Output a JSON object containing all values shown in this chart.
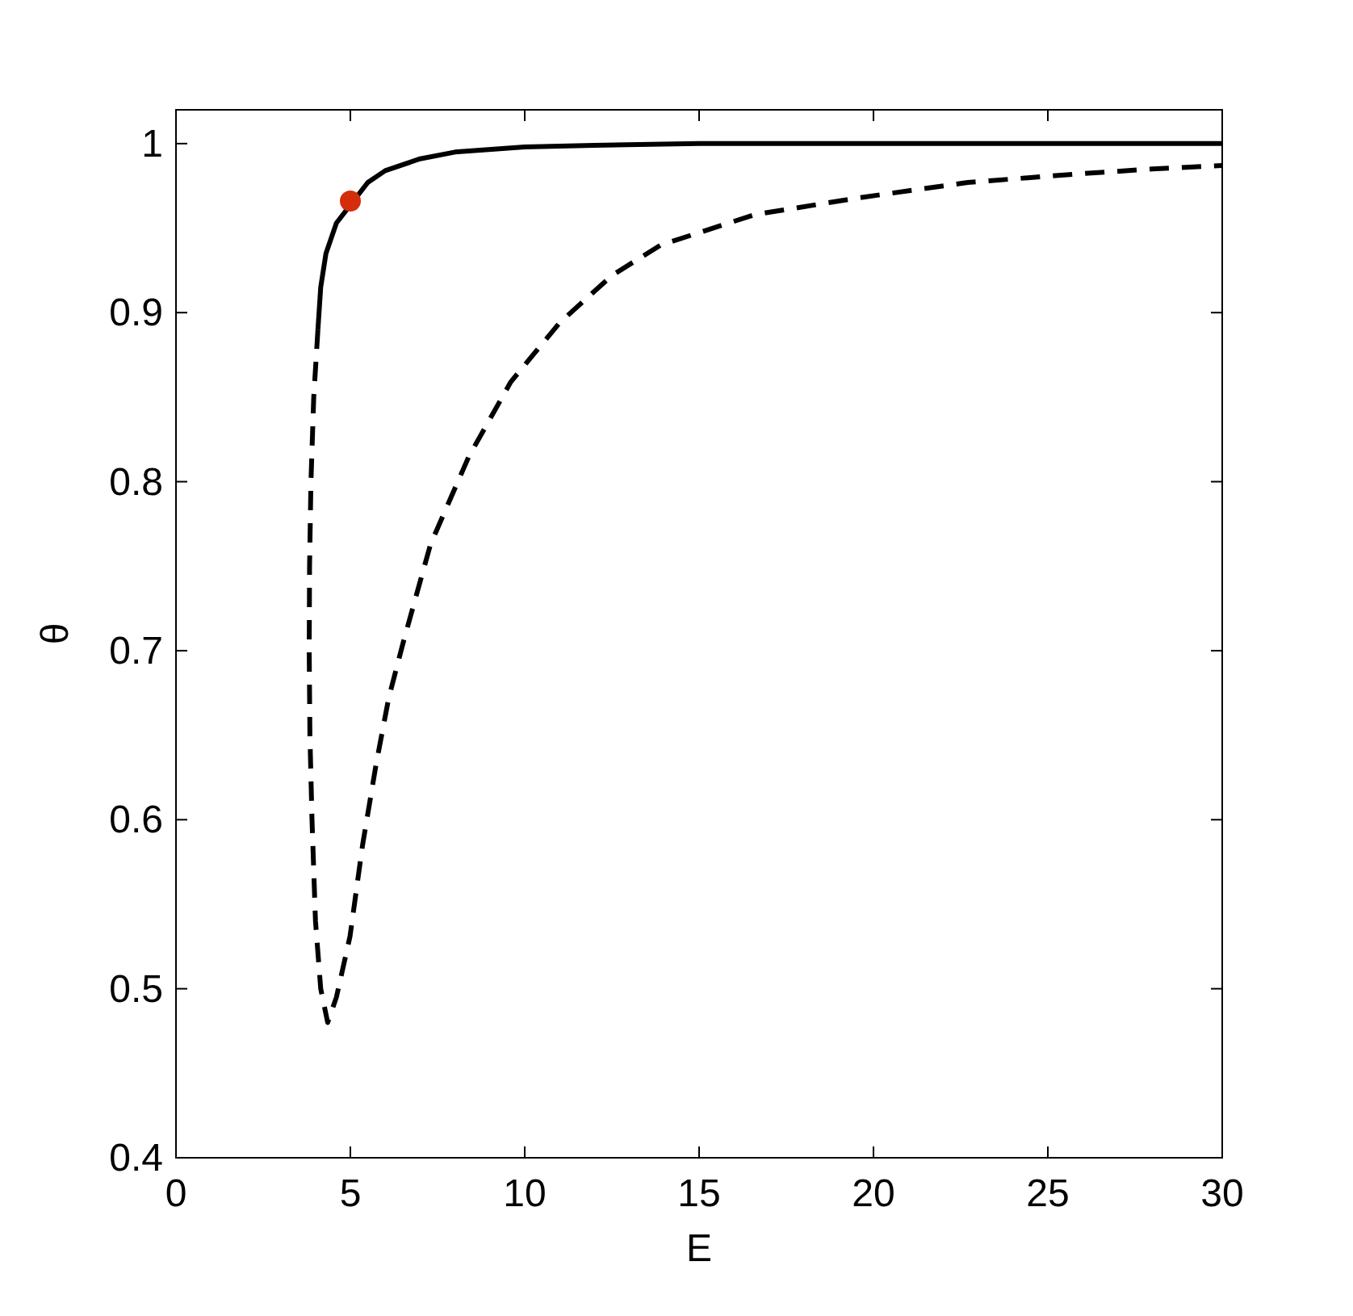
{
  "chart_data": {
    "type": "line",
    "xlabel": "E",
    "ylabel": "θ",
    "xlim": [
      0,
      30
    ],
    "ylim": [
      0.4,
      1.02
    ],
    "xticks": [
      0,
      5,
      10,
      15,
      20,
      25,
      30
    ],
    "yticks": [
      {
        "value": 0.4,
        "label": "0.4"
      },
      {
        "value": 0.5,
        "label": "0.5"
      },
      {
        "value": 0.6,
        "label": "0.6"
      },
      {
        "value": 0.7,
        "label": "0.7"
      },
      {
        "value": 0.8,
        "label": "0.8"
      },
      {
        "value": 0.9,
        "label": "0.9"
      },
      {
        "value": 1,
        "label": "1"
      }
    ],
    "grid": false,
    "marker": "none",
    "series": [
      {
        "color": "#000000",
        "line_style": "solid",
        "x": [
          4.07,
          4.15,
          4.3,
          4.6,
          5.5,
          6,
          7,
          8,
          10,
          12,
          15,
          20,
          25,
          30
        ],
        "values": [
          0.89,
          0.915,
          0.935,
          0.953,
          0.977,
          0.984,
          0.991,
          0.995,
          0.998,
          0.999,
          1,
          1,
          1,
          1
        ]
      },
      {
        "color": "#000000",
        "line_style": "dashed",
        "x": [
          4.07,
          3.95,
          3.87,
          3.83,
          3.82,
          3.84,
          3.9,
          4.0,
          4.15,
          4.35,
          4.6,
          4.99,
          5.35,
          5.74,
          6.1,
          6.53,
          7.3,
          8.4,
          9.6,
          11.0,
          12.5,
          13.9,
          16.6,
          19.6,
          22.7,
          25.8,
          28,
          30
        ],
        "values": [
          0.89,
          0.85,
          0.8,
          0.75,
          0.7,
          0.65,
          0.6,
          0.54,
          0.5,
          0.48,
          0.495,
          0.531,
          0.585,
          0.633,
          0.672,
          0.706,
          0.763,
          0.815,
          0.859,
          0.894,
          0.922,
          0.94,
          0.958,
          0.968,
          0.977,
          0.982,
          0.985,
          0.987
        ]
      },
      {
        "type": "scatter",
        "marker": "circle",
        "color": "#d42d0b",
        "x": [
          5
        ],
        "values": [
          0.966
        ]
      }
    ]
  }
}
